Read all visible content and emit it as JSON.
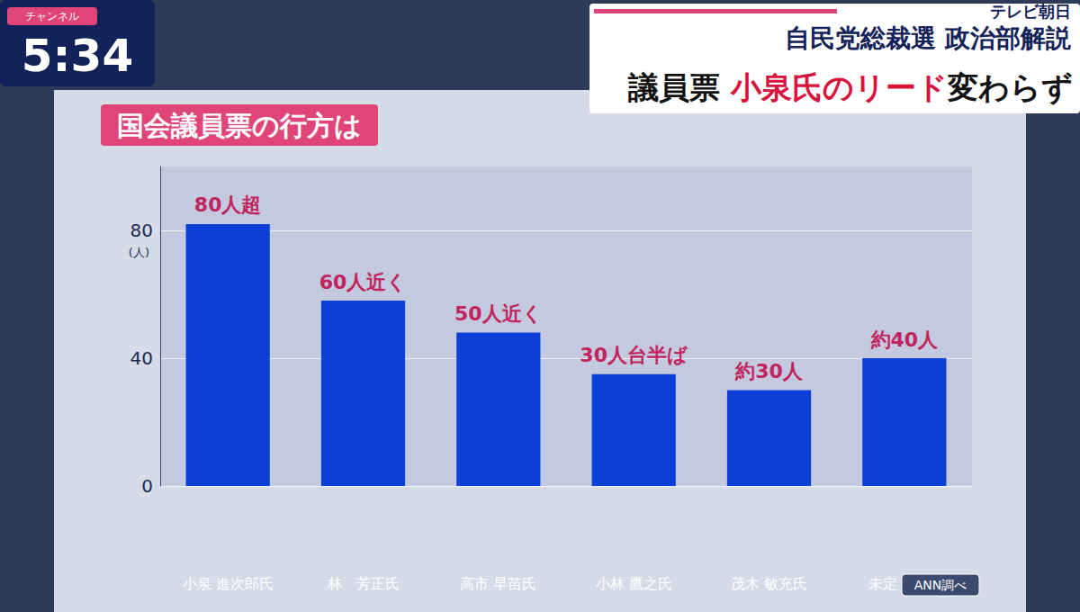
{
  "chart_data": {
    "type": "bar",
    "title": "国会議員票の行方は",
    "header": "自民党総裁選 政治部解説",
    "headline": [
      "議員票 ",
      "小泉氏のリード",
      "変わらず"
    ],
    "channel": "テレビ朝日",
    "clock": "5:34",
    "clock_label": "チャンネル",
    "source": "ANN調べ",
    "ylabel": "(人)",
    "categories": [
      "小泉 進次郎氏",
      "林　芳正氏",
      "高市 早苗氏",
      "小林 鷹之氏",
      "茂木 敏充氏",
      "未定・不明"
    ],
    "values": [
      82,
      58,
      48,
      35,
      30,
      40
    ],
    "value_labels": [
      "80人超",
      "60人近く",
      "50人近く",
      "30人台半ば",
      "約30人",
      "約40人"
    ],
    "color": "#0b3fd6",
    "ylim": [
      0,
      100
    ],
    "yticks": [
      0,
      40,
      80
    ],
    "grid": true,
    "data_labels": true
  }
}
